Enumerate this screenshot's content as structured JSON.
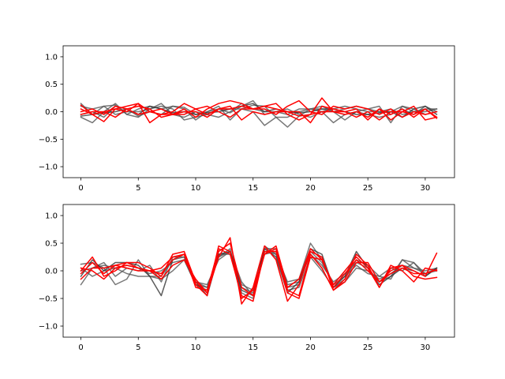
{
  "chart_data": [
    {
      "type": "line",
      "title": "",
      "xlabel": "",
      "ylabel": "",
      "xlim": [
        -1.55,
        32.55
      ],
      "ylim": [
        -1.2,
        1.2
      ],
      "xticks": [
        0,
        5,
        10,
        15,
        20,
        25,
        30
      ],
      "yticks": [
        -1.0,
        -0.5,
        0.0,
        0.5,
        1.0
      ],
      "ytick_labels": [
        "−1.0",
        "−0.5",
        "0.0",
        "0.5",
        "1.0"
      ],
      "grid": false,
      "x": [
        0,
        1,
        2,
        3,
        4,
        5,
        6,
        7,
        8,
        9,
        10,
        11,
        12,
        13,
        14,
        15,
        16,
        17,
        18,
        19,
        20,
        21,
        22,
        23,
        24,
        25,
        26,
        27,
        28,
        29,
        30,
        31
      ],
      "series": [
        {
          "color": "#555555",
          "alpha": 0.8,
          "values": [
            0.15,
            -0.05,
            0.1,
            0.12,
            -0.05,
            0.05,
            0.1,
            0.05,
            0.1,
            0.08,
            -0.05,
            0.0,
            0.05,
            -0.02,
            0.1,
            0.2,
            -0.05,
            0.0,
            -0.05,
            0.05,
            0.05,
            0.05,
            0.0,
            0.05,
            0.1,
            0.05,
            0.0,
            0.0,
            0.1,
            0.0,
            0.05,
            0.05
          ]
        },
        {
          "color": "#555555",
          "alpha": 0.8,
          "values": [
            -0.1,
            -0.2,
            0.0,
            0.15,
            -0.05,
            -0.1,
            0.05,
            0.1,
            0.05,
            -0.15,
            -0.1,
            -0.05,
            0.05,
            0.05,
            0.05,
            0.0,
            -0.25,
            -0.1,
            -0.28,
            -0.08,
            0.05,
            0.0,
            -0.2,
            -0.05,
            0.0,
            -0.05,
            -0.1,
            -0.05,
            0.05,
            -0.05,
            0.1,
            0.0
          ]
        },
        {
          "color": "#555555",
          "alpha": 0.8,
          "values": [
            -0.05,
            0.0,
            -0.1,
            0.1,
            0.05,
            -0.08,
            0.0,
            -0.05,
            0.1,
            0.05,
            -0.15,
            0.0,
            0.1,
            -0.15,
            0.05,
            0.12,
            0.1,
            -0.1,
            -0.1,
            0.0,
            0.05,
            0.1,
            0.0,
            -0.15,
            0.0,
            0.05,
            0.1,
            -0.2,
            0.1,
            0.05,
            -0.05,
            0.0
          ]
        },
        {
          "color": "#555555",
          "alpha": 0.8,
          "values": [
            0.1,
            0.05,
            0.1,
            -0.05,
            0.0,
            0.0,
            0.05,
            0.15,
            -0.05,
            -0.1,
            0.0,
            -0.05,
            -0.1,
            0.0,
            0.15,
            0.05,
            0.0,
            0.0,
            0.05,
            -0.05,
            -0.1,
            0.0,
            0.05,
            0.1,
            0.05,
            0.0,
            0.0,
            0.05,
            -0.05,
            0.0,
            0.0,
            0.05
          ]
        },
        {
          "color": "#333333",
          "alpha": 0.8,
          "values": [
            -0.08,
            -0.05,
            -0.02,
            0.0,
            0.05,
            -0.05,
            0.1,
            0.05,
            -0.02,
            0.0,
            -0.05,
            -0.02,
            0.0,
            0.05,
            0.1,
            0.15,
            0.0,
            0.05,
            0.0,
            -0.02,
            0.0,
            0.05,
            0.05,
            0.0,
            -0.05,
            -0.05,
            -0.02,
            0.0,
            -0.1,
            0.05,
            0.1,
            -0.05
          ]
        },
        {
          "color": "#ff0000",
          "alpha": 1.0,
          "values": [
            0.12,
            -0.05,
            -0.18,
            0.05,
            0.1,
            0.15,
            -0.2,
            -0.05,
            0.0,
            0.15,
            0.05,
            -0.05,
            0.05,
            0.05,
            0.1,
            0.05,
            0.1,
            0.05,
            0.0,
            0.0,
            -0.2,
            0.1,
            0.05,
            0.0,
            0.05,
            -0.15,
            0.05,
            -0.15,
            0.0,
            0.1,
            -0.15,
            -0.1
          ]
        },
        {
          "color": "#ff0000",
          "alpha": 1.0,
          "values": [
            0.0,
            0.05,
            -0.05,
            0.1,
            0.05,
            -0.05,
            0.0,
            0.05,
            -0.05,
            0.05,
            -0.1,
            0.05,
            0.15,
            0.2,
            0.15,
            0.05,
            0.05,
            -0.05,
            0.1,
            0.2,
            0.0,
            -0.05,
            0.1,
            0.05,
            0.1,
            0.05,
            -0.05,
            0.05,
            -0.1,
            0.0,
            -0.05,
            0.0
          ]
        },
        {
          "color": "#ff0000",
          "alpha": 1.0,
          "values": [
            -0.05,
            0.0,
            0.0,
            -0.1,
            0.05,
            0.1,
            0.05,
            -0.1,
            -0.05,
            -0.05,
            0.05,
            0.1,
            0.0,
            -0.1,
            0.05,
            0.05,
            0.1,
            0.15,
            -0.05,
            -0.15,
            -0.05,
            0.25,
            0.0,
            -0.05,
            0.0,
            -0.1,
            0.05,
            -0.05,
            0.05,
            -0.1,
            0.05,
            -0.1
          ]
        },
        {
          "color": "#ff0000",
          "alpha": 1.0,
          "values": [
            0.05,
            -0.05,
            0.0,
            0.05,
            0.0,
            0.15,
            0.0,
            -0.05,
            -0.05,
            0.0,
            0.0,
            -0.1,
            0.05,
            0.1,
            -0.15,
            0.0,
            -0.05,
            0.0,
            0.0,
            -0.08,
            -0.05,
            0.0,
            0.0,
            0.0,
            -0.1,
            0.0,
            -0.15,
            0.0,
            0.0,
            -0.05,
            0.05,
            -0.12
          ]
        }
      ]
    },
    {
      "type": "line",
      "title": "",
      "xlabel": "",
      "ylabel": "",
      "xlim": [
        -1.55,
        32.55
      ],
      "ylim": [
        -1.2,
        1.2
      ],
      "xticks": [
        0,
        5,
        10,
        15,
        20,
        25,
        30
      ],
      "yticks": [
        -1.0,
        -0.5,
        0.0,
        0.5,
        1.0
      ],
      "ytick_labels": [
        "−1.0",
        "−0.5",
        "0.0",
        "0.5",
        "1.0"
      ],
      "grid": false,
      "x": [
        0,
        1,
        2,
        3,
        4,
        5,
        6,
        7,
        8,
        9,
        10,
        11,
        12,
        13,
        14,
        15,
        16,
        17,
        18,
        19,
        20,
        21,
        22,
        23,
        24,
        25,
        26,
        27,
        28,
        29,
        30,
        31
      ],
      "series": [
        {
          "color": "#555555",
          "alpha": 0.8,
          "values": [
            0.12,
            0.15,
            0.05,
            -0.25,
            -0.15,
            0.2,
            -0.1,
            -0.15,
            0.0,
            0.2,
            -0.25,
            -0.3,
            0.3,
            0.3,
            -0.25,
            -0.35,
            0.35,
            0.3,
            -0.2,
            -0.15,
            0.5,
            0.2,
            -0.3,
            -0.15,
            0.2,
            0.1,
            -0.1,
            0.05,
            0.0,
            0.15,
            -0.05,
            0.05
          ]
        },
        {
          "color": "#555555",
          "alpha": 0.8,
          "values": [
            -0.25,
            0.05,
            0.1,
            0.05,
            -0.05,
            -0.1,
            -0.1,
            -0.1,
            0.2,
            0.25,
            -0.2,
            -0.25,
            0.2,
            0.35,
            -0.3,
            -0.4,
            0.3,
            0.35,
            -0.3,
            -0.25,
            0.35,
            0.15,
            -0.25,
            -0.1,
            0.1,
            -0.05,
            -0.1,
            -0.15,
            0.2,
            0.05,
            0.0,
            0.05
          ]
        },
        {
          "color": "#555555",
          "alpha": 0.8,
          "values": [
            0.0,
            0.05,
            0.15,
            -0.1,
            0.05,
            0.0,
            0.1,
            -0.2,
            0.25,
            0.25,
            -0.2,
            -0.3,
            0.25,
            0.35,
            -0.2,
            -0.45,
            0.4,
            0.4,
            -0.25,
            -0.2,
            0.3,
            0.1,
            -0.2,
            -0.05,
            0.15,
            0.05,
            -0.2,
            -0.1,
            0.2,
            0.15,
            -0.1,
            0.05
          ]
        },
        {
          "color": "#555555",
          "alpha": 0.8,
          "values": [
            0.05,
            -0.1,
            0.0,
            0.05,
            0.1,
            0.05,
            -0.05,
            0.0,
            0.15,
            0.2,
            -0.25,
            -0.35,
            0.25,
            0.4,
            -0.4,
            -0.5,
            0.45,
            0.3,
            -0.35,
            -0.3,
            0.25,
            0.0,
            -0.3,
            -0.2,
            0.05,
            0.0,
            -0.15,
            -0.05,
            0.1,
            0.05,
            -0.05,
            0.0
          ]
        },
        {
          "color": "#333333",
          "alpha": 0.8,
          "values": [
            -0.1,
            0.2,
            0.0,
            0.15,
            0.15,
            0.1,
            -0.1,
            -0.45,
            0.2,
            0.3,
            -0.2,
            -0.45,
            0.3,
            0.35,
            -0.35,
            -0.45,
            0.4,
            0.25,
            -0.4,
            -0.2,
            0.4,
            0.3,
            -0.3,
            -0.1,
            0.35,
            0.05,
            -0.25,
            -0.1,
            0.05,
            0.0,
            -0.1,
            0.05
          ]
        },
        {
          "color": "#ff0000",
          "alpha": 1.0,
          "values": [
            0.0,
            0.25,
            -0.1,
            0.0,
            0.15,
            0.15,
            0.05,
            -0.1,
            0.3,
            0.35,
            -0.2,
            -0.4,
            0.25,
            0.6,
            -0.6,
            -0.3,
            0.45,
            0.2,
            -0.55,
            -0.25,
            0.35,
            0.25,
            -0.35,
            -0.15,
            0.3,
            0.1,
            -0.3,
            0.1,
            0.0,
            -0.2,
            0.05,
            0.0
          ]
        },
        {
          "color": "#ff0000",
          "alpha": 1.0,
          "values": [
            -0.15,
            0.05,
            0.05,
            0.1,
            0.05,
            0.0,
            0.0,
            -0.05,
            0.2,
            0.3,
            -0.3,
            -0.35,
            0.4,
            0.3,
            -0.45,
            -0.55,
            0.35,
            0.35,
            -0.4,
            -0.5,
            0.25,
            0.2,
            -0.25,
            0.0,
            0.25,
            0.05,
            -0.3,
            0.05,
            0.1,
            -0.1,
            -0.15,
            -0.12
          ]
        },
        {
          "color": "#ff0000",
          "alpha": 1.0,
          "values": [
            0.05,
            0.0,
            -0.15,
            0.05,
            0.1,
            0.05,
            0.0,
            0.05,
            0.25,
            0.3,
            -0.25,
            -0.45,
            0.45,
            0.35,
            -0.5,
            -0.35,
            0.3,
            0.45,
            -0.3,
            -0.15,
            0.4,
            0.2,
            -0.3,
            -0.05,
            0.2,
            0.0,
            -0.2,
            0.0,
            0.1,
            0.0,
            -0.1,
            0.32
          ]
        },
        {
          "color": "#ff0000",
          "alpha": 1.0,
          "values": [
            -0.05,
            0.15,
            -0.05,
            0.1,
            0.15,
            0.05,
            0.0,
            -0.15,
            0.1,
            0.2,
            -0.15,
            -0.4,
            0.35,
            0.5,
            -0.3,
            -0.45,
            0.3,
            0.4,
            -0.35,
            -0.45,
            0.3,
            0.05,
            -0.35,
            -0.2,
            0.15,
            0.15,
            -0.2,
            -0.05,
            0.05,
            -0.05,
            -0.05,
            0.02
          ]
        }
      ]
    }
  ]
}
